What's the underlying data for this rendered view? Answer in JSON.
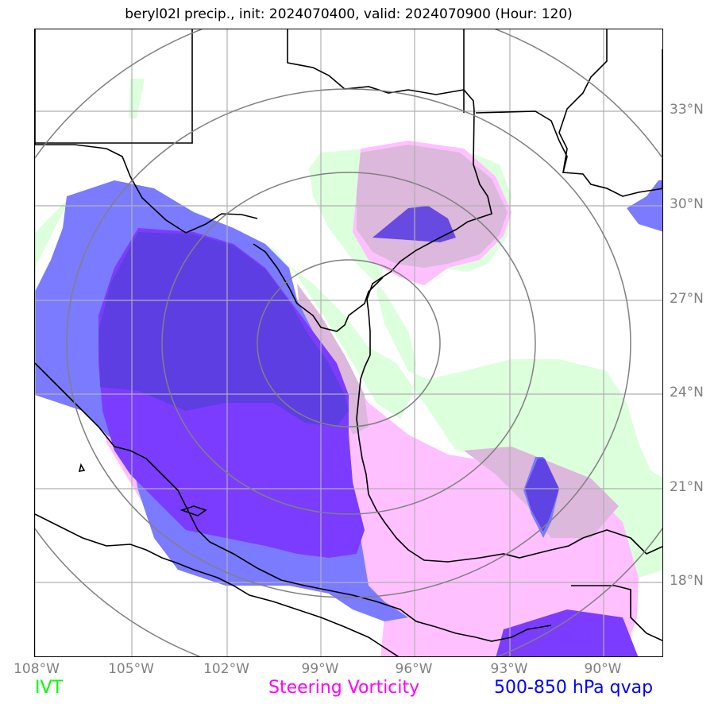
{
  "title": "beryl02l precip., init: 2024070400, valid: 2024070900 (Hour: 120)",
  "lat_labels": [
    "33°N",
    "30°N",
    "27°N",
    "24°N",
    "21°N",
    "18°N"
  ],
  "lon_labels": [
    "108°W",
    "105°W",
    "102°W",
    "99°W",
    "96°W",
    "93°W",
    "90°W"
  ],
  "legend": {
    "ivt": "IVT",
    "steering_vorticity": "Steering Vorticity",
    "qvap": "500-850 hPa qvap"
  },
  "colors": {
    "ivt": "#00ff00",
    "ivt_fill": "#dcffdc",
    "steering_vorticity": "#ff00ff",
    "vorticity_fill": "#ffc0ff",
    "qvap": "#0000ff",
    "qvap_fill_light": "#7b7bff",
    "qvap_fill_dark": "#7b3cff",
    "grid": "#b0b0b0",
    "range_rings": "#808080",
    "tick_labels": "#808080"
  }
}
